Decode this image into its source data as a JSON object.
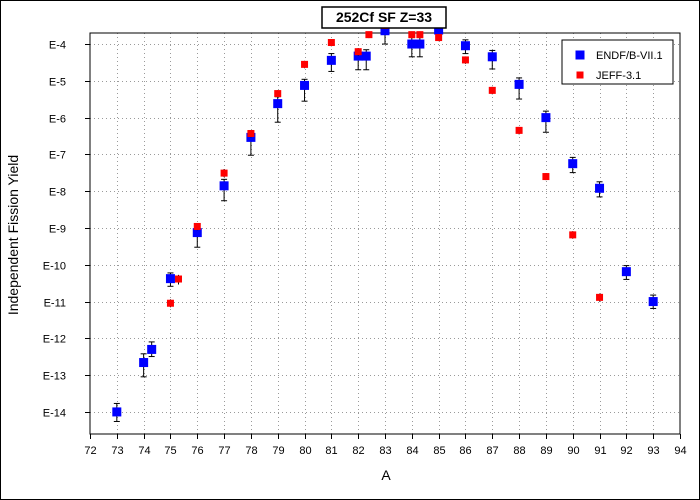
{
  "chart_data": {
    "type": "scatter",
    "title": "252Cf SF Z=33",
    "xlabel": "A",
    "ylabel": "Independent Fission Yield",
    "xlim": [
      72,
      94
    ],
    "xticks": [
      "72",
      "73",
      "74",
      "75",
      "76",
      "77",
      "78",
      "79",
      "80",
      "81",
      "82",
      "83",
      "84",
      "85",
      "86",
      "87",
      "88",
      "89",
      "90",
      "91",
      "92",
      "93",
      "94"
    ],
    "yscale": "log",
    "yticks": [
      {
        "exp": -4,
        "label": "E-4"
      },
      {
        "exp": -5,
        "label": "E-5"
      },
      {
        "exp": -6,
        "label": "E-6"
      },
      {
        "exp": -7,
        "label": "E-7"
      },
      {
        "exp": -8,
        "label": "E-8"
      },
      {
        "exp": -9,
        "label": "E-9"
      },
      {
        "exp": -10,
        "label": "E-10"
      },
      {
        "exp": -11,
        "label": "E-11"
      },
      {
        "exp": -12,
        "label": "E-12"
      },
      {
        "exp": -13,
        "label": "E-13"
      },
      {
        "exp": -14,
        "label": "E-14"
      }
    ],
    "grid": true,
    "legend": "top-right",
    "series": [
      {
        "name": "ENDF/B-VII.1",
        "color": "#0000ff",
        "marker": "square",
        "points": [
          {
            "x": 73,
            "y": 1e-14,
            "ylo": 5.5e-15,
            "yhi": 1.7e-14
          },
          {
            "x": 74,
            "y": 2.2e-13,
            "ylo": 9e-14,
            "yhi": 3.8e-13
          },
          {
            "x": 74.3,
            "y": 5e-13,
            "ylo": 3.2e-13,
            "yhi": 8e-13
          },
          {
            "x": 75,
            "y": 4.2e-11,
            "ylo": 2.6e-11,
            "yhi": 6e-11
          },
          {
            "x": 76,
            "y": 7.5e-10,
            "ylo": 3e-10,
            "yhi": 1.1e-09
          },
          {
            "x": 77,
            "y": 1.4e-08,
            "ylo": 5.5e-09,
            "yhi": 2.1e-08
          },
          {
            "x": 78,
            "y": 2.9e-07,
            "ylo": 9.5e-08,
            "yhi": 4.4e-07
          },
          {
            "x": 79,
            "y": 2.4e-06,
            "ylo": 7.5e-07,
            "yhi": 3.7e-06
          },
          {
            "x": 80,
            "y": 7.5e-06,
            "ylo": 2.8e-06,
            "yhi": 1.1e-05
          },
          {
            "x": 81,
            "y": 3.6e-05,
            "ylo": 1.8e-05,
            "yhi": 5.5e-05
          },
          {
            "x": 82,
            "y": 4.7e-05,
            "ylo": 2e-05,
            "yhi": 7e-05
          },
          {
            "x": 82.3,
            "y": 4.7e-05,
            "ylo": 2e-05,
            "yhi": 7e-05
          },
          {
            "x": 83,
            "y": 0.00023,
            "ylo": 0.0001,
            "yhi": 0.00035
          },
          {
            "x": 84,
            "y": 0.0001,
            "ylo": 4.5e-05,
            "yhi": 0.00015
          },
          {
            "x": 84.3,
            "y": 0.0001,
            "ylo": 4.5e-05,
            "yhi": 0.00015
          },
          {
            "x": 85,
            "y": 0.00024,
            "ylo": 0.00013,
            "yhi": 0.00035
          },
          {
            "x": 86,
            "y": 9e-05,
            "ylo": 5.5e-05,
            "yhi": 0.00013
          },
          {
            "x": 87,
            "y": 4.5e-05,
            "ylo": 2.1e-05,
            "yhi": 6.7e-05
          },
          {
            "x": 88,
            "y": 8e-06,
            "ylo": 3.2e-06,
            "yhi": 1.2e-05
          },
          {
            "x": 89,
            "y": 1e-06,
            "ylo": 4e-07,
            "yhi": 1.5e-06
          },
          {
            "x": 90,
            "y": 5.6e-08,
            "ylo": 3.2e-08,
            "yhi": 8.3e-08
          },
          {
            "x": 91,
            "y": 1.2e-08,
            "ylo": 7e-09,
            "yhi": 1.8e-08
          },
          {
            "x": 92,
            "y": 6.5e-11,
            "ylo": 4e-11,
            "yhi": 9.5e-11
          },
          {
            "x": 93,
            "y": 1e-11,
            "ylo": 6.5e-12,
            "yhi": 1.5e-11
          }
        ]
      },
      {
        "name": "JEFF-3.1",
        "color": "#ff0000",
        "marker": "square",
        "points": [
          {
            "x": 75,
            "y": 9e-12,
            "ylo": 7e-12,
            "yhi": 1.15e-11
          },
          {
            "x": 75.3,
            "y": 4.1e-11,
            "ylo": 2.9e-11,
            "yhi": 5.3e-11
          },
          {
            "x": 76,
            "y": 1.1e-09,
            "ylo": 8.7e-10,
            "yhi": 1.35e-09
          },
          {
            "x": 77,
            "y": 3.1e-08,
            "ylo": 2.4e-08,
            "yhi": 4e-08
          },
          {
            "x": 78,
            "y": 3.7e-07,
            "ylo": 2.9e-07,
            "yhi": 4.6e-07
          },
          {
            "x": 79,
            "y": 4.5e-06,
            "ylo": 3.5e-06,
            "yhi": 5.6e-06
          },
          {
            "x": 80,
            "y": 2.8e-05,
            "ylo": 2.2e-05,
            "yhi": 3.5e-05
          },
          {
            "x": 81,
            "y": 0.00011,
            "ylo": 8.7e-05,
            "yhi": 0.000135
          },
          {
            "x": 82,
            "y": 6.2e-05,
            "ylo": 4.8e-05,
            "yhi": 7.8e-05
          },
          {
            "x": 82.4,
            "y": 0.00018,
            "ylo": 0.000145,
            "yhi": 0.00022
          },
          {
            "x": 83,
            "y": 0.00032,
            "ylo": 0.00026,
            "yhi": 0.00039
          },
          {
            "x": 84,
            "y": 0.00018,
            "ylo": 0.000145,
            "yhi": 0.00022
          },
          {
            "x": 84.3,
            "y": 0.00018,
            "ylo": 0.000145,
            "yhi": 0.00022
          },
          {
            "x": 85,
            "y": 0.00015,
            "ylo": 0.00012,
            "yhi": 0.000185
          },
          {
            "x": 86,
            "y": 3.7e-05,
            "ylo": 2.9e-05,
            "yhi": 4.6e-05
          },
          {
            "x": 87,
            "y": 5.5e-06,
            "ylo": 4.3e-06,
            "yhi": 6.9e-06
          },
          {
            "x": 88,
            "y": 4.5e-07,
            "ylo": 3.5e-07,
            "yhi": 5.6e-07
          },
          {
            "x": 89,
            "y": 2.5e-08,
            "ylo": 2e-08,
            "yhi": 3.1e-08
          },
          {
            "x": 90,
            "y": 6.5e-10,
            "ylo": 5.1e-10,
            "yhi": 8.2e-10
          },
          {
            "x": 91,
            "y": 1.3e-11,
            "ylo": 1e-11,
            "yhi": 1.65e-11
          }
        ]
      }
    ]
  }
}
